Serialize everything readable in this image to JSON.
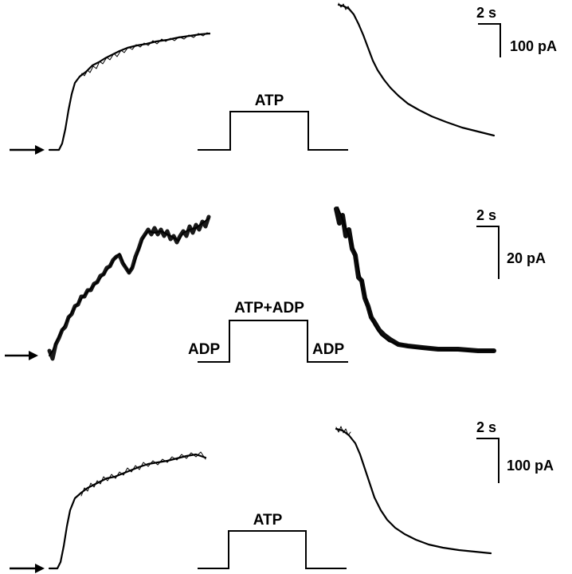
{
  "panels": [
    {
      "protocol_label": "ATP",
      "side_labels": [
        "",
        ""
      ],
      "scale": {
        "time": "2 s",
        "current": "100 pA"
      }
    },
    {
      "protocol_label": "ATP+ADP",
      "side_labels": [
        "ADP",
        "ADP"
      ],
      "scale": {
        "time": "2 s",
        "current": "20 pA"
      }
    },
    {
      "protocol_label": "ATP",
      "side_labels": [
        "",
        ""
      ],
      "scale": {
        "time": "2 s",
        "current": "100 pA"
      }
    }
  ]
}
